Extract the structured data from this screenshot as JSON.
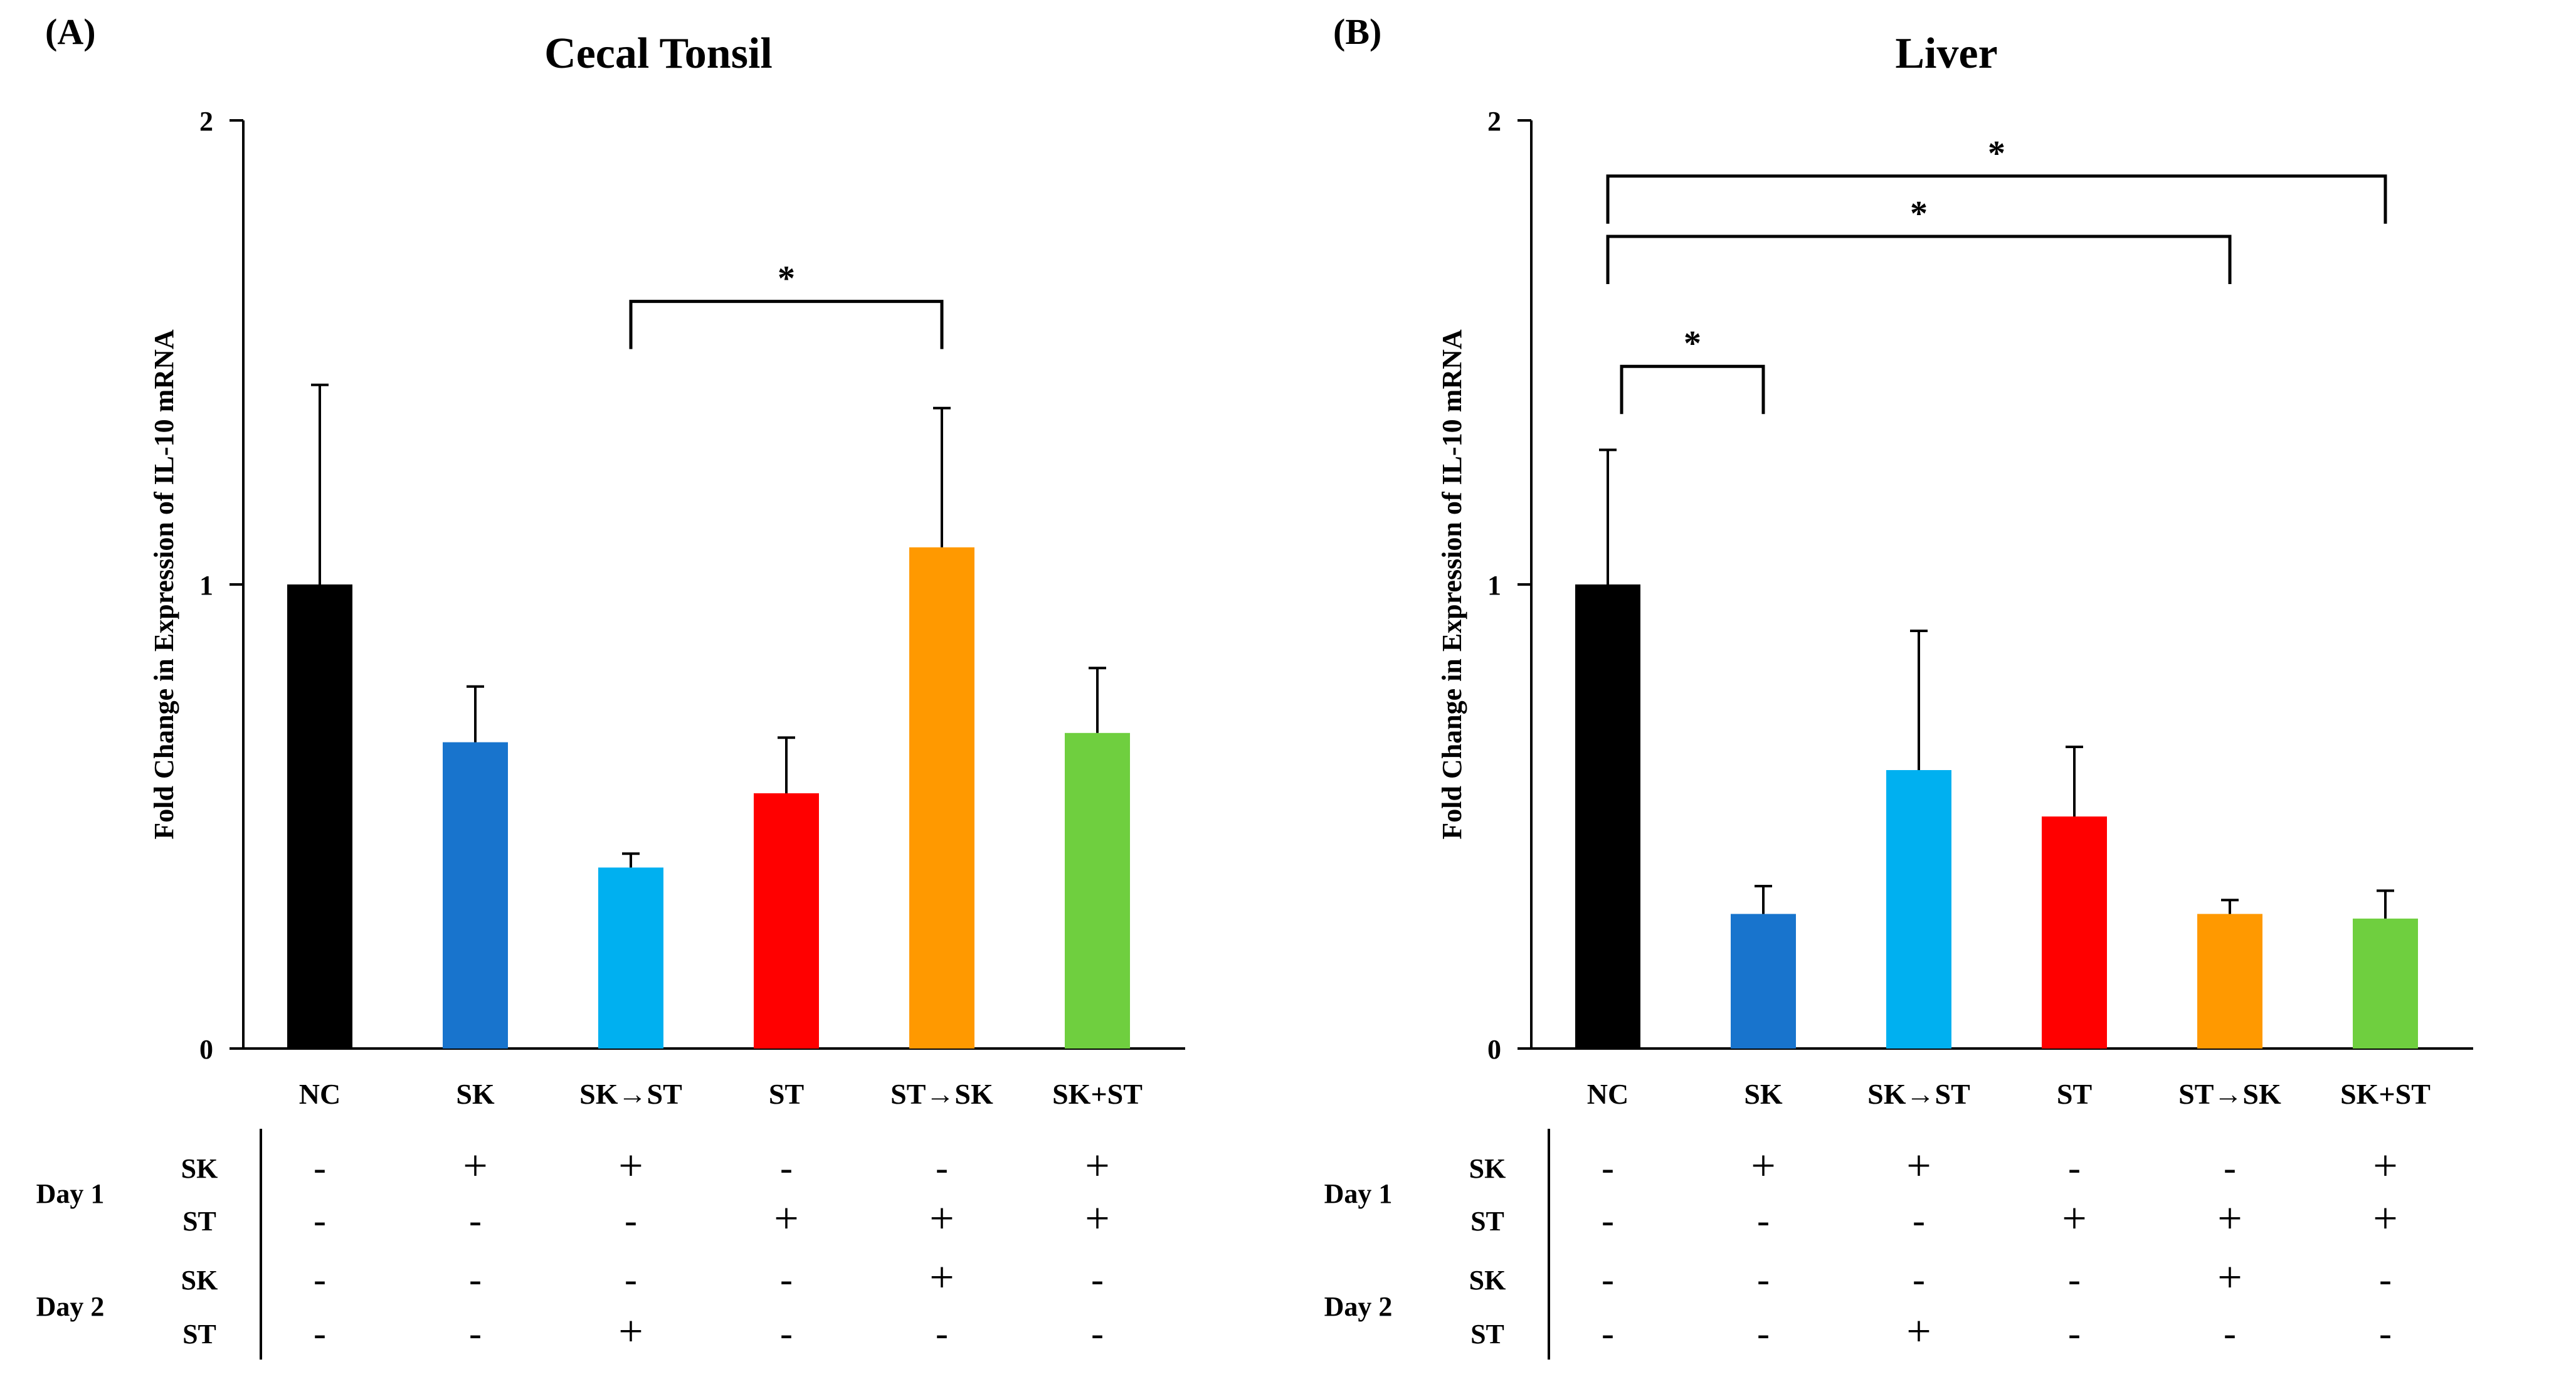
{
  "chart_data": [
    {
      "panel_label": "(A)",
      "type": "bar",
      "title": "Cecal Tonsil",
      "ylabel": "Fold Change in Expression of IL-10 mRNA",
      "ylim": [
        0,
        2
      ],
      "yticks": [
        "0",
        "1",
        "2"
      ],
      "categories": [
        "NC",
        "SK",
        "SK→ST",
        "ST",
        "ST→SK",
        "SK+ST"
      ],
      "values": [
        1.0,
        0.66,
        0.39,
        0.55,
        1.08,
        0.68
      ],
      "errors": [
        0.43,
        0.12,
        0.03,
        0.12,
        0.3,
        0.14
      ],
      "colors": [
        "#000000",
        "#1874cd",
        "#00b0f0",
        "#ff0000",
        "#ff9900",
        "#6fcf3f"
      ],
      "significance": [
        {
          "from": 2,
          "to": 4,
          "y": 1.61,
          "label": "*"
        }
      ],
      "treatment_table": {
        "groups": [
          {
            "label": "Day 1",
            "rows": [
              {
                "label": "SK",
                "marks": [
                  "-",
                  "+",
                  "+",
                  "-",
                  "-",
                  "+"
                ]
              },
              {
                "label": "ST",
                "marks": [
                  "-",
                  "-",
                  "-",
                  "+",
                  "+",
                  "+"
                ]
              }
            ]
          },
          {
            "label": "Day 2",
            "rows": [
              {
                "label": "SK",
                "marks": [
                  "-",
                  "-",
                  "-",
                  "-",
                  "+",
                  "-"
                ]
              },
              {
                "label": "ST",
                "marks": [
                  "-",
                  "-",
                  "+",
                  "-",
                  "-",
                  "-"
                ]
              }
            ]
          }
        ]
      }
    },
    {
      "panel_label": "(B)",
      "type": "bar",
      "title": "Liver",
      "ylabel": "Fold Change in Expression of IL-10 mRNA",
      "ylim": [
        0,
        2
      ],
      "yticks": [
        "0",
        "1",
        "2"
      ],
      "categories": [
        "NC",
        "SK",
        "SK→ST",
        "ST",
        "ST→SK",
        "SK+ST"
      ],
      "values": [
        1.0,
        0.29,
        0.6,
        0.5,
        0.29,
        0.28
      ],
      "errors": [
        0.29,
        0.06,
        0.3,
        0.15,
        0.03,
        0.06
      ],
      "colors": [
        "#000000",
        "#1874cd",
        "#00b0f0",
        "#ff0000",
        "#ff9900",
        "#6fcf3f"
      ],
      "significance": [
        {
          "from": 0,
          "to": 5,
          "y": 1.88,
          "label": "*"
        },
        {
          "from": 0,
          "to": 4,
          "y": 1.75,
          "label": "*"
        },
        {
          "from": 0,
          "to": 1,
          "y": 1.47,
          "label": "*"
        }
      ],
      "treatment_table": {
        "groups": [
          {
            "label": "Day 1",
            "rows": [
              {
                "label": "SK",
                "marks": [
                  "-",
                  "+",
                  "+",
                  "-",
                  "-",
                  "+"
                ]
              },
              {
                "label": "ST",
                "marks": [
                  "-",
                  "-",
                  "-",
                  "+",
                  "+",
                  "+"
                ]
              }
            ]
          },
          {
            "label": "Day 2",
            "rows": [
              {
                "label": "SK",
                "marks": [
                  "-",
                  "-",
                  "-",
                  "-",
                  "+",
                  "-"
                ]
              },
              {
                "label": "ST",
                "marks": [
                  "-",
                  "-",
                  "+",
                  "-",
                  "-",
                  "-"
                ]
              }
            ]
          }
        ]
      }
    }
  ]
}
